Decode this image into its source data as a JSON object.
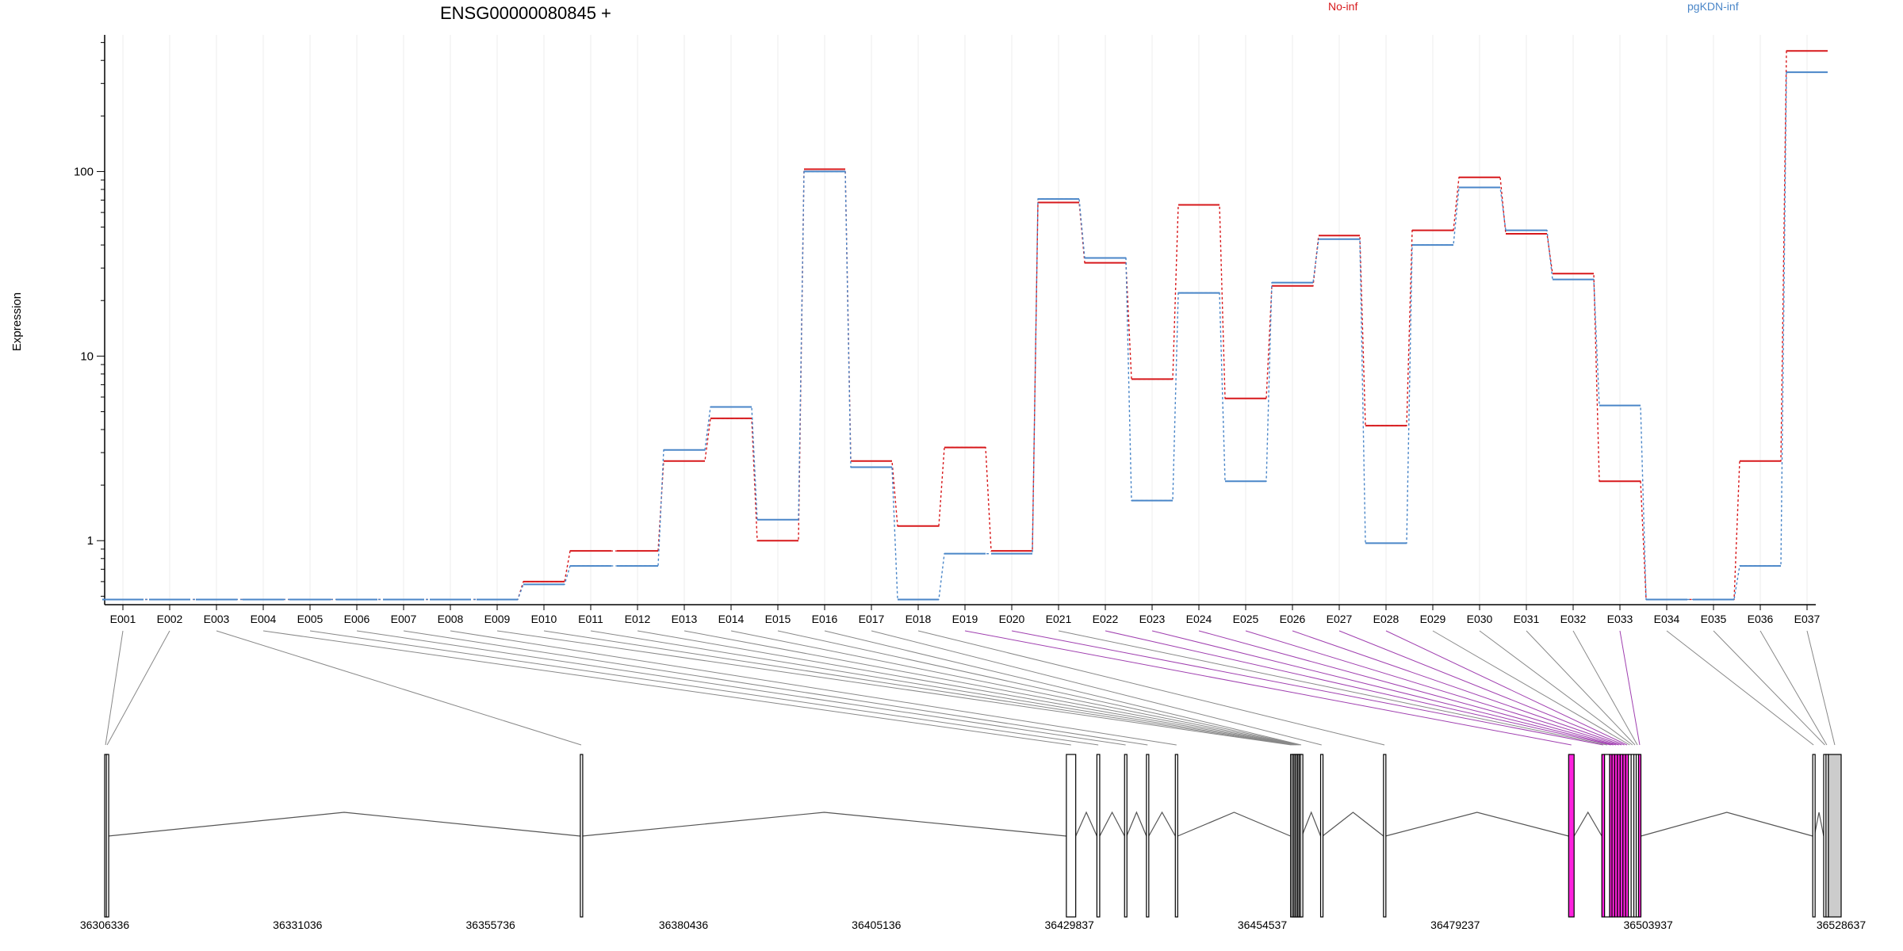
{
  "chart_data": {
    "type": "line",
    "title": "ENSG00000080845 +",
    "ylabel": "Expression",
    "y_scale": "log",
    "ylim": [
      0.45,
      550
    ],
    "y_ticks": [
      "1",
      "10",
      "100"
    ],
    "grid": true,
    "legend_placement": "top",
    "legend": [
      {
        "label": "No-inf",
        "color": "#d7191c"
      },
      {
        "label": "pgKDN-inf",
        "color": "#4a86c8"
      }
    ],
    "categories": [
      "E001",
      "E002",
      "E003",
      "E004",
      "E005",
      "E006",
      "E007",
      "E008",
      "E009",
      "E010",
      "E011",
      "E012",
      "E013",
      "E014",
      "E015",
      "E016",
      "E017",
      "E018",
      "E019",
      "E020",
      "E021",
      "E022",
      "E023",
      "E024",
      "E025",
      "E026",
      "E027",
      "E028",
      "E029",
      "E030",
      "E031",
      "E032",
      "E033",
      "E034",
      "E035",
      "E036",
      "E037"
    ],
    "series": [
      {
        "name": "No-inf",
        "color": "#d7191c",
        "values": [
          0.48,
          0.48,
          0.48,
          0.48,
          0.48,
          0.48,
          0.48,
          0.48,
          0.48,
          0.6,
          0.88,
          0.88,
          2.7,
          4.6,
          1.0,
          103,
          2.7,
          1.2,
          3.2,
          0.88,
          68,
          32,
          7.5,
          66,
          5.9,
          24,
          45,
          4.2,
          48,
          93,
          46,
          28,
          2.1,
          0.48,
          0.48,
          2.7,
          450
        ]
      },
      {
        "name": "pgKDN-inf",
        "color": "#4a86c8",
        "values": [
          0.48,
          0.48,
          0.48,
          0.48,
          0.48,
          0.48,
          0.48,
          0.48,
          0.48,
          0.58,
          0.73,
          0.73,
          3.1,
          5.3,
          1.3,
          100,
          2.5,
          0.48,
          0.85,
          0.85,
          71,
          34,
          1.65,
          22,
          2.1,
          25,
          43,
          0.97,
          40,
          82,
          48,
          26,
          5.4,
          0.48,
          0.48,
          0.73,
          345
        ]
      }
    ],
    "genomic_axis": {
      "range": [
        36306336,
        36528637
      ],
      "tick_labels": [
        "36306336",
        "36331036",
        "36355736",
        "36380436",
        "36405136",
        "36429837",
        "36454537",
        "36479237",
        "36503937",
        "36528637"
      ]
    },
    "exon_map": [
      {
        "id": "E001",
        "start": 36306336,
        "end": 36306550,
        "color": "#ffffff"
      },
      {
        "id": "E002",
        "start": 36306550,
        "end": 36306750,
        "color": "#ffffff"
      },
      {
        "id": "E003",
        "start": 36367230,
        "end": 36367450,
        "color": "#ffffff"
      },
      {
        "id": "E004",
        "start": 36429450,
        "end": 36430650,
        "color": "#ffffff"
      },
      {
        "id": "E005",
        "start": 36433360,
        "end": 36433720,
        "color": "#ffffff"
      },
      {
        "id": "E006",
        "start": 36436900,
        "end": 36437170,
        "color": "#ffffff"
      },
      {
        "id": "E007",
        "start": 36439700,
        "end": 36440000,
        "color": "#ffffff"
      },
      {
        "id": "E008",
        "start": 36443400,
        "end": 36443700,
        "color": "#ffffff"
      },
      {
        "id": "E009",
        "start": 36458150,
        "end": 36458350,
        "color": "#ffffff"
      },
      {
        "id": "E010",
        "start": 36458350,
        "end": 36458550,
        "color": "#ffffff"
      },
      {
        "id": "E011",
        "start": 36458550,
        "end": 36458720,
        "color": "#ffffff"
      },
      {
        "id": "E012",
        "start": 36458720,
        "end": 36458900,
        "color": "#ffffff"
      },
      {
        "id": "E013",
        "start": 36458900,
        "end": 36459070,
        "color": "#ffffff"
      },
      {
        "id": "E014",
        "start": 36459070,
        "end": 36459250,
        "color": "#ffffff"
      },
      {
        "id": "E015",
        "start": 36459250,
        "end": 36459420,
        "color": "#ffffff"
      },
      {
        "id": "E016",
        "start": 36459420,
        "end": 36459600,
        "color": "#ffffff"
      },
      {
        "id": "E017",
        "start": 36462000,
        "end": 36462250,
        "color": "#ffffff"
      },
      {
        "id": "E018",
        "start": 36470050,
        "end": 36470300,
        "color": "#ffffff"
      },
      {
        "id": "E019",
        "start": 36493750,
        "end": 36494450,
        "color": "#ff22dd"
      },
      {
        "id": "E020",
        "start": 36498000,
        "end": 36498350,
        "color": "#ff22dd"
      },
      {
        "id": "E021",
        "start": 36498350,
        "end": 36499000,
        "color": "#ffffff"
      },
      {
        "id": "E022",
        "start": 36499000,
        "end": 36499300,
        "color": "#ff22dd"
      },
      {
        "id": "E023",
        "start": 36499300,
        "end": 36499650,
        "color": "#ff22dd"
      },
      {
        "id": "E024",
        "start": 36499650,
        "end": 36500000,
        "color": "#ff22dd"
      },
      {
        "id": "E025",
        "start": 36500000,
        "end": 36500350,
        "color": "#ff22dd"
      },
      {
        "id": "E026",
        "start": 36500350,
        "end": 36500700,
        "color": "#ff22dd"
      },
      {
        "id": "E027",
        "start": 36500700,
        "end": 36501050,
        "color": "#ff22dd"
      },
      {
        "id": "E028",
        "start": 36501050,
        "end": 36501400,
        "color": "#ff22dd"
      },
      {
        "id": "E029",
        "start": 36501400,
        "end": 36501750,
        "color": "#ffffff"
      },
      {
        "id": "E030",
        "start": 36501750,
        "end": 36502100,
        "color": "#ffffff"
      },
      {
        "id": "E031",
        "start": 36502100,
        "end": 36502400,
        "color": "#ffffff"
      },
      {
        "id": "E032",
        "start": 36502400,
        "end": 36502700,
        "color": "#ffffff"
      },
      {
        "id": "E033",
        "start": 36502700,
        "end": 36503000,
        "color": "#ff22dd"
      },
      {
        "id": "E034",
        "start": 36525000,
        "end": 36525200,
        "color": "#ffffff"
      },
      {
        "id": "E035",
        "start": 36526400,
        "end": 36526700,
        "color": "#ffffff"
      },
      {
        "id": "E036",
        "start": 36526700,
        "end": 36526900,
        "color": "#ffffff"
      },
      {
        "id": "E037",
        "start": 36527000,
        "end": 36528637,
        "color": "#cccccc"
      }
    ]
  }
}
